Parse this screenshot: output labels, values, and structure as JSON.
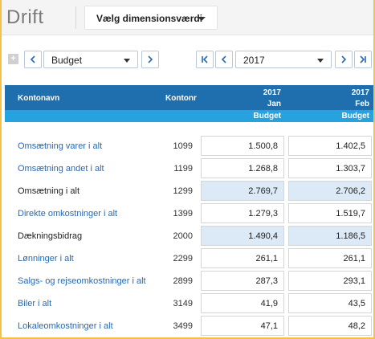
{
  "header": {
    "title": "Drift",
    "dimension_button": "Vælg dimensionsværdi"
  },
  "toolbar": {
    "expand": "+",
    "version_select": "Budget",
    "period_select": "2017"
  },
  "table": {
    "col_name": "Kontonavn",
    "col_nr": "Kontonr",
    "col1_year": "2017",
    "col1_month": "Jan",
    "col1_sub": "Budget",
    "col2_year": "2017",
    "col2_month": "Feb",
    "col2_sub": "Budget",
    "rows": [
      {
        "name": "Omsætning varer i alt",
        "nr": "1099",
        "jan": "1.500,8",
        "feb": "1.402,5"
      },
      {
        "name": "Omsætning andet i alt",
        "nr": "1199",
        "jan": "1.268,8",
        "feb": "1.303,7"
      },
      {
        "name": "Omsætning i alt",
        "nr": "1299",
        "jan": "2.769,7",
        "feb": "2.706,2"
      },
      {
        "name": "Direkte omkostninger i alt",
        "nr": "1399",
        "jan": "1.279,3",
        "feb": "1.519,7"
      },
      {
        "name": "Dækningsbidrag",
        "nr": "2000",
        "jan": "1.490,4",
        "feb": "1.186,5"
      },
      {
        "name": "Lønninger i alt",
        "nr": "2299",
        "jan": "261,1",
        "feb": "261,1"
      },
      {
        "name": "Salgs- og rejseomkostninger i alt",
        "nr": "2899",
        "jan": "287,3",
        "feb": "293,1"
      },
      {
        "name": "Biler i alt",
        "nr": "3149",
        "jan": "41,9",
        "feb": "43,5"
      },
      {
        "name": "Lokaleomkostninger i alt",
        "nr": "3499",
        "jan": "47,1",
        "feb": "48,2"
      }
    ]
  },
  "colors": {
    "header_dark": "#1f6fae",
    "header_light": "#26a3df",
    "link": "#2669b4",
    "highlight": "#dce9f6",
    "frame": "#f3c04a"
  }
}
